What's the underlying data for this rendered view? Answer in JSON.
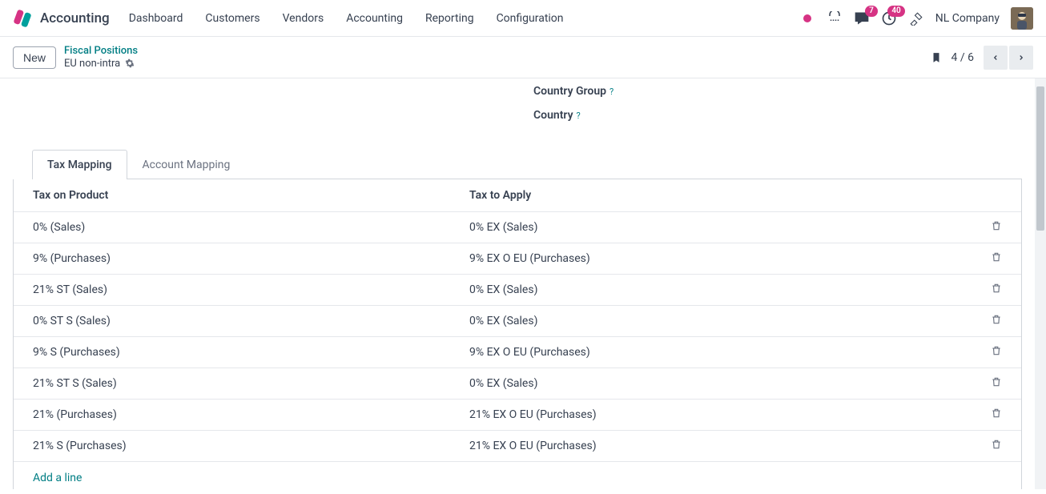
{
  "navbar": {
    "app_title": "Accounting",
    "menu": [
      "Dashboard",
      "Customers",
      "Vendors",
      "Accounting",
      "Reporting",
      "Configuration"
    ],
    "badges": {
      "messages": "7",
      "activities": "40"
    },
    "company": "NL Company"
  },
  "subheader": {
    "new_label": "New",
    "breadcrumb_parent": "Fiscal Positions",
    "breadcrumb_current": "EU non-intra",
    "pager": "4 / 6"
  },
  "form": {
    "country_group_label": "Country Group",
    "country_label": "Country"
  },
  "tabs": {
    "tax_mapping": "Tax Mapping",
    "account_mapping": "Account Mapping"
  },
  "table": {
    "header_product": "Tax on Product",
    "header_apply": "Tax to Apply",
    "rows": [
      {
        "product": "0% (Sales)",
        "apply": "0% EX (Sales)"
      },
      {
        "product": "9% (Purchases)",
        "apply": "9% EX O EU (Purchases)"
      },
      {
        "product": "21% ST (Sales)",
        "apply": "0% EX (Sales)"
      },
      {
        "product": "0% ST S (Sales)",
        "apply": "0% EX (Sales)"
      },
      {
        "product": "9% S (Purchases)",
        "apply": "9% EX O EU (Purchases)"
      },
      {
        "product": "21% ST S (Sales)",
        "apply": "0% EX (Sales)"
      },
      {
        "product": "21% (Purchases)",
        "apply": "21% EX O EU (Purchases)"
      },
      {
        "product": "21% S (Purchases)",
        "apply": "21% EX O EU (Purchases)"
      }
    ],
    "add_line": "Add a line"
  },
  "colors": {
    "teal": "#017e84",
    "badge": "#d63384"
  }
}
